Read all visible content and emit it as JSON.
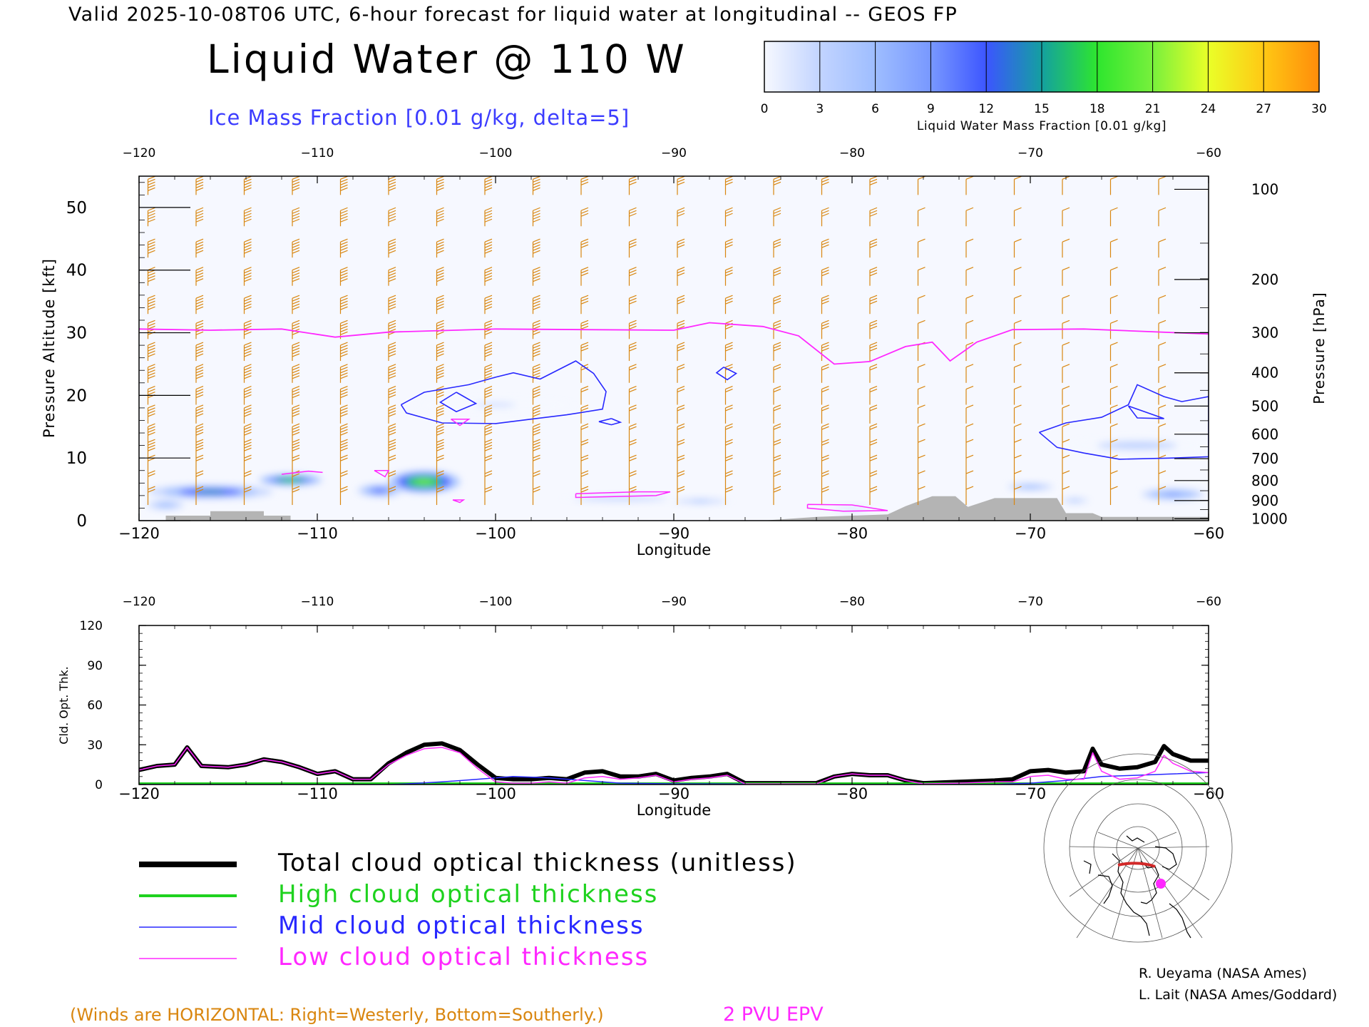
{
  "header": {
    "valid_line": "Valid 2025-10-08T06 UTC, 6-hour forecast for liquid water at longitudinal -- GEOS FP",
    "title": "Liquid Water @ 110 W",
    "subtitle": "Ice Mass Fraction [0.01 g/kg, delta=5]",
    "subtitle_color": "#3c3cff"
  },
  "colorbar": {
    "label": "Liquid Water Mass Fraction [0.01 g/kg]",
    "ticks": [
      "0",
      "3",
      "6",
      "9",
      "12",
      "15",
      "18",
      "21",
      "24",
      "27",
      "30"
    ],
    "colors": [
      "#f6f8ff",
      "#c2d4ff",
      "#9ebdff",
      "#7898ff",
      "#3c55ff",
      "#14a0a0",
      "#2ee62e",
      "#78f03c",
      "#eaff28",
      "#ffc814",
      "#ff8c0a",
      "#ff3c00"
    ]
  },
  "footer": {
    "winds_note": "(Winds are HORIZONTAL: Right=Westerly, Bottom=Southerly.)",
    "epv_label": "2 PVU EPV",
    "credit_1": "R. Ueyama (NASA Ames)",
    "credit_2": "L. Lait (NASA Ames/Goddard)",
    "wind_color": "#d9860f",
    "epv_color": "#ff28ff"
  },
  "legend": [
    {
      "label": "Total cloud optical thickness (unitless)",
      "color": "#000000"
    },
    {
      "label": "High cloud optical thickness",
      "color": "#1ed21e"
    },
    {
      "label": "Mid cloud optical thickness",
      "color": "#2828ff"
    },
    {
      "label": "Low cloud optical thickness",
      "color": "#ff28ff"
    }
  ],
  "chart_data": [
    {
      "type": "heatmap",
      "name": "liquid-water-cross-section",
      "xlabel": "Longitude",
      "ylabel": "Pressure Altitude [kft]",
      "y2label": "Pressure [hPa]",
      "xlim": [
        -120,
        -60
      ],
      "ylim": [
        0,
        55
      ],
      "xticks": [
        "-120",
        "-110",
        "-100",
        "-90",
        "-80",
        "-70",
        "-60"
      ],
      "top_xticks": [
        "-120",
        "-110",
        "-100",
        "-90",
        "-80",
        "-70",
        "-60"
      ],
      "yticks": [
        "0",
        "10",
        "20",
        "30",
        "40",
        "50"
      ],
      "pressure_ticks": [
        {
          "label": "100",
          "kft": 52.9
        },
        {
          "label": "200",
          "kft": 38.5
        },
        {
          "label": "300",
          "kft": 30.0
        },
        {
          "label": "400",
          "kft": 23.6
        },
        {
          "label": "500",
          "kft": 18.3
        },
        {
          "label": "600",
          "kft": 13.8
        },
        {
          "label": "700",
          "kft": 9.9
        },
        {
          "label": "800",
          "kft": 6.4
        },
        {
          "label": "900",
          "kft": 3.2
        },
        {
          "label": "1000",
          "kft": 0.3
        }
      ],
      "epv_2pvu": [
        [
          -120,
          30.6
        ],
        [
          -116,
          30.4
        ],
        [
          -112,
          30.6
        ],
        [
          -109,
          29.3
        ],
        [
          -106,
          30.1
        ],
        [
          -100,
          30.6
        ],
        [
          -95,
          30.5
        ],
        [
          -90,
          30.4
        ],
        [
          -88,
          31.6
        ],
        [
          -85,
          31.0
        ],
        [
          -83,
          29.5
        ],
        [
          -81,
          25.0
        ],
        [
          -79,
          25.4
        ],
        [
          -77,
          27.8
        ],
        [
          -75.5,
          28.5
        ],
        [
          -74.5,
          25.5
        ],
        [
          -73,
          28.5
        ],
        [
          -71,
          30.5
        ],
        [
          -67,
          30.6
        ],
        [
          -60,
          29.8
        ]
      ],
      "liquid_water_blobs": [
        {
          "lon": -116,
          "kft": 4.6,
          "width_deg": 7,
          "height_kft": 2.2,
          "max": 14
        },
        {
          "lon": -111.5,
          "kft": 6.5,
          "width_deg": 3.5,
          "height_kft": 1.8,
          "max": 18
        },
        {
          "lon": -104,
          "kft": 6.2,
          "width_deg": 4,
          "height_kft": 3.5,
          "max": 22
        },
        {
          "lon": -106.5,
          "kft": 4.8,
          "width_deg": 2.5,
          "height_kft": 2.0,
          "max": 12
        },
        {
          "lon": -118.5,
          "kft": 2.5,
          "width_deg": 2,
          "height_kft": 1.4,
          "max": 6
        },
        {
          "lon": -93,
          "kft": 3.5,
          "width_deg": 7,
          "height_kft": 1.0,
          "max": 3
        },
        {
          "lon": -88.5,
          "kft": 3.1,
          "width_deg": 4,
          "height_kft": 0.9,
          "max": 5
        },
        {
          "lon": -80,
          "kft": 1.8,
          "width_deg": 4,
          "height_kft": 0.9,
          "max": 2
        },
        {
          "lon": -70,
          "kft": 5.4,
          "width_deg": 2.5,
          "height_kft": 1.1,
          "max": 6
        },
        {
          "lon": -67.5,
          "kft": 3.2,
          "width_deg": 2,
          "height_kft": 0.9,
          "max": 5
        },
        {
          "lon": -62,
          "kft": 4.2,
          "width_deg": 3.5,
          "height_kft": 1.7,
          "max": 9
        },
        {
          "lon": -64,
          "kft": 12,
          "width_deg": 9,
          "height_kft": 3,
          "max": 2
        },
        {
          "lon": -100,
          "kft": 18.5,
          "width_deg": 9,
          "height_kft": 2.5,
          "max": 1.5
        }
      ],
      "ice_contours": [
        [
          [
            -105.3,
            18.5
          ],
          [
            -104,
            20.5
          ],
          [
            -101.5,
            21.7
          ],
          [
            -100,
            22.9
          ],
          [
            -99,
            23.6
          ],
          [
            -97.5,
            22.6
          ],
          [
            -95.5,
            25.5
          ],
          [
            -94.5,
            23.5
          ],
          [
            -93.8,
            20.6
          ],
          [
            -94,
            17.8
          ],
          [
            -96,
            16.9
          ],
          [
            -98,
            16.2
          ],
          [
            -100,
            15.5
          ],
          [
            -103,
            15.6
          ],
          [
            -105,
            17.2
          ],
          [
            -105.3,
            18.5
          ]
        ],
        [
          [
            -102.2,
            20.5
          ],
          [
            -101.1,
            18.7
          ],
          [
            -102.2,
            17.4
          ],
          [
            -103.1,
            18.9
          ],
          [
            -102.2,
            20.5
          ]
        ],
        [
          [
            -87.2,
            24.5
          ],
          [
            -86.5,
            23.5
          ],
          [
            -87,
            22.5
          ],
          [
            -87.6,
            23.6
          ],
          [
            -87.2,
            24.5
          ]
        ],
        [
          [
            -93.5,
            16.3
          ],
          [
            -93,
            15.7
          ],
          [
            -93.5,
            15.3
          ],
          [
            -94.2,
            15.8
          ],
          [
            -93.5,
            16.3
          ]
        ],
        [
          [
            -69.5,
            14.1
          ],
          [
            -68,
            15.6
          ],
          [
            -66,
            16.5
          ],
          [
            -64.5,
            18.5
          ],
          [
            -64,
            21.7
          ],
          [
            -62.5,
            19.8
          ],
          [
            -61.5,
            19.0
          ],
          [
            -60,
            19.8
          ],
          [
            -60,
            10.2
          ],
          [
            -62,
            10.0
          ],
          [
            -65,
            9.8
          ],
          [
            -67,
            10.8
          ],
          [
            -68.5,
            11.7
          ],
          [
            -69.5,
            14.1
          ]
        ],
        [
          [
            -64.5,
            18.3
          ],
          [
            -62.5,
            16.3
          ],
          [
            -64,
            16.4
          ],
          [
            -64.5,
            18.3
          ]
        ]
      ],
      "terrain": [
        [
          -120,
          0
        ],
        [
          -118.5,
          0
        ],
        [
          -118.5,
          0.8
        ],
        [
          -116,
          0.8
        ],
        [
          -116,
          1.5
        ],
        [
          -113,
          1.5
        ],
        [
          -113,
          0.8
        ],
        [
          -111.5,
          0.8
        ],
        [
          -111.5,
          0
        ],
        [
          -90,
          0
        ],
        [
          -85,
          0
        ],
        [
          -82,
          0.6
        ],
        [
          -80,
          0.8
        ],
        [
          -78,
          1.0
        ],
        [
          -77,
          2.3
        ],
        [
          -75.5,
          3.9
        ],
        [
          -74.2,
          3.9
        ],
        [
          -73.5,
          2.2
        ],
        [
          -72,
          3.6
        ],
        [
          -68.5,
          3.6
        ],
        [
          -68,
          1.2
        ],
        [
          -66.5,
          1.2
        ],
        [
          -66,
          0.6
        ],
        [
          -60,
          0.6
        ],
        [
          -60,
          0
        ],
        [
          -120,
          0
        ]
      ],
      "wind_barbs": "horizontal wind barbs at model levels (flags/barbs drawn in orange)"
    },
    {
      "type": "line",
      "name": "cloud-optical-thickness",
      "xlabel": "Longitude",
      "ylabel": "Cld. Opt. Thk.",
      "xlim": [
        -120,
        -60
      ],
      "ylim": [
        0,
        120
      ],
      "xticks": [
        "-120",
        "-110",
        "-100",
        "-90",
        "-80",
        "-70",
        "-60"
      ],
      "top_xticks": [
        "-120",
        "-110",
        "-100",
        "-90",
        "-80",
        "-70",
        "-60"
      ],
      "yticks": [
        "0",
        "30",
        "60",
        "90",
        "120"
      ],
      "series": [
        {
          "name": "Total cloud optical thickness (unitless)",
          "color": "#000000",
          "width": 6,
          "x": [
            -120,
            -119,
            -118,
            -117.3,
            -116.5,
            -115,
            -114,
            -113,
            -112,
            -111,
            -110,
            -109,
            -108,
            -107,
            -106,
            -105,
            -104,
            -103,
            -102,
            -101,
            -100,
            -99,
            -98,
            -97,
            -96,
            -95,
            -94,
            -93,
            -92,
            -91,
            -90,
            -89,
            -88,
            -87,
            -86,
            -84,
            -82,
            -81,
            -80,
            -79,
            -78,
            -77,
            -76,
            -74,
            -72,
            -71,
            -70,
            -69,
            -68,
            -67,
            -66.5,
            -66,
            -65,
            -64,
            -63,
            -62.5,
            -62,
            -61,
            -60
          ],
          "y": [
            11,
            14,
            15,
            28,
            14,
            13,
            15,
            19,
            17,
            13,
            8,
            10,
            4,
            4,
            16,
            24,
            30,
            31,
            26,
            15,
            5,
            4,
            4,
            5,
            4,
            9,
            10,
            6,
            6,
            8,
            3,
            5,
            6,
            8,
            1,
            1,
            1,
            6,
            8,
            7,
            7,
            3,
            1,
            2,
            3,
            4,
            10,
            11,
            9,
            10,
            27,
            15,
            12,
            13,
            17,
            29,
            23,
            18,
            18
          ]
        },
        {
          "name": "High cloud optical thickness",
          "color": "#1ed21e",
          "width": 3,
          "x": [
            -120,
            -60
          ],
          "y": [
            0.8,
            0.8
          ]
        },
        {
          "name": "Mid cloud optical thickness",
          "color": "#2828ff",
          "width": 1.5,
          "x": [
            -120,
            -106,
            -105,
            -103,
            -101,
            -99,
            -97,
            -95,
            -93,
            -90,
            -88,
            -86,
            -84,
            -72,
            -70,
            -68,
            -66,
            -64,
            -62,
            -60
          ],
          "y": [
            0,
            0,
            0.5,
            2,
            4,
            6,
            5,
            3,
            1,
            0.5,
            0.5,
            0.3,
            0,
            0,
            1,
            3,
            6,
            7,
            8,
            9
          ]
        },
        {
          "name": "Low cloud optical thickness",
          "color": "#ff28ff",
          "width": 1.5,
          "x": [
            -120,
            -119,
            -118,
            -117.3,
            -116.5,
            -115,
            -114,
            -113,
            -112,
            -111,
            -110,
            -109,
            -108,
            -107,
            -106,
            -105,
            -104,
            -103,
            -102,
            -101,
            -100,
            -99,
            -98,
            -97,
            -96,
            -95,
            -94,
            -93,
            -92,
            -91,
            -90,
            -89,
            -88,
            -87,
            -86,
            -84,
            -82,
            -81,
            -80,
            -79,
            -78,
            -77,
            -76,
            -74,
            -72,
            -71,
            -70,
            -69,
            -68,
            -67,
            -66.5,
            -66,
            -65,
            -64,
            -63,
            -62.5,
            -62,
            -61,
            -60
          ],
          "y": [
            11,
            14,
            15,
            28,
            14,
            13,
            15,
            19,
            17,
            13,
            8,
            10,
            4,
            4,
            15,
            22,
            27,
            28,
            24,
            12,
            2,
            1,
            1,
            2,
            1,
            5,
            6,
            4,
            5,
            7,
            2,
            4,
            5,
            7,
            0.5,
            0.5,
            0.5,
            6,
            8,
            7,
            7,
            3,
            0.5,
            1,
            2,
            2,
            6,
            7,
            4,
            4,
            24,
            10,
            4,
            5,
            10,
            22,
            16,
            10,
            9
          ]
        }
      ]
    }
  ]
}
